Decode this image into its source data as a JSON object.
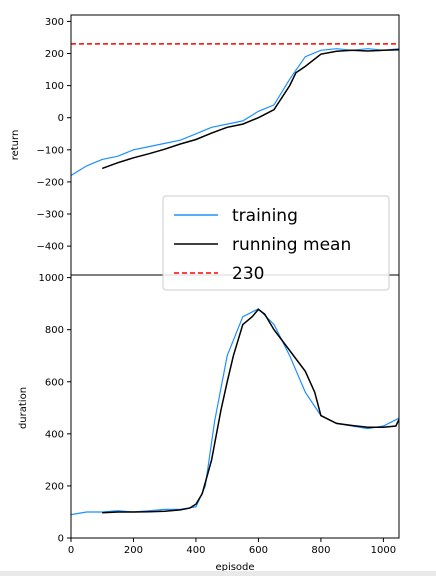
{
  "chart_data": [
    {
      "type": "line",
      "panel": "top",
      "title": "",
      "xlabel": "",
      "ylabel": "return",
      "xlim": [
        0,
        1050
      ],
      "ylim": [
        -490,
        320
      ],
      "yticks": [
        -400,
        -300,
        -200,
        -100,
        0,
        100,
        200,
        300
      ],
      "ytick_labels": [
        "−400",
        "−300",
        "−200",
        "−100",
        "0",
        "100",
        "200",
        "300"
      ],
      "grid": false,
      "legend": {
        "placement": "lower-right",
        "entries": [
          {
            "label": "training",
            "color": "#1e90ff",
            "style": "solid"
          },
          {
            "label": "running mean",
            "color": "#000000",
            "style": "solid"
          },
          {
            "label": "230",
            "color": "#ff0000",
            "style": "dashed"
          }
        ]
      },
      "series": [
        {
          "name": "training",
          "color": "#1e90ff",
          "x": [
            0,
            50,
            100,
            150,
            200,
            250,
            300,
            350,
            400,
            450,
            500,
            550,
            600,
            650,
            700,
            750,
            800,
            850,
            900,
            950,
            1000,
            1050
          ],
          "y": [
            -180,
            -150,
            -130,
            -120,
            -100,
            -90,
            -80,
            -70,
            -50,
            -30,
            -20,
            -10,
            20,
            40,
            120,
            190,
            210,
            215,
            210,
            215,
            210,
            215
          ]
        },
        {
          "name": "running mean",
          "color": "#000000",
          "x": [
            100,
            150,
            200,
            250,
            300,
            350,
            400,
            450,
            500,
            550,
            600,
            650,
            700,
            720,
            750,
            800,
            850,
            900,
            950,
            1000,
            1050
          ],
          "y": [
            -158,
            -140,
            -125,
            -112,
            -98,
            -82,
            -68,
            -48,
            -30,
            -20,
            0,
            25,
            100,
            140,
            160,
            198,
            207,
            210,
            208,
            210,
            212
          ]
        },
        {
          "name": "230",
          "color": "#ff0000",
          "x": [
            0,
            1050
          ],
          "y": [
            230,
            230
          ]
        }
      ]
    },
    {
      "type": "line",
      "panel": "bottom",
      "title": "",
      "xlabel": "episode",
      "ylabel": "duration",
      "xlim": [
        0,
        1050
      ],
      "ylim": [
        0,
        1010
      ],
      "xticks": [
        0,
        200,
        400,
        600,
        800,
        1000
      ],
      "yticks": [
        0,
        200,
        400,
        600,
        800,
        1000
      ],
      "grid": false,
      "series": [
        {
          "name": "training",
          "color": "#1e90ff",
          "x": [
            0,
            50,
            100,
            150,
            200,
            250,
            300,
            350,
            400,
            430,
            460,
            500,
            550,
            600,
            650,
            700,
            750,
            800,
            850,
            900,
            950,
            1000,
            1050
          ],
          "y": [
            90,
            100,
            100,
            105,
            100,
            105,
            110,
            110,
            120,
            200,
            450,
            700,
            850,
            880,
            820,
            700,
            560,
            470,
            440,
            430,
            420,
            430,
            460
          ]
        },
        {
          "name": "running mean",
          "color": "#000000",
          "x": [
            100,
            150,
            200,
            250,
            300,
            350,
            380,
            400,
            420,
            450,
            480,
            500,
            520,
            550,
            580,
            600,
            620,
            650,
            700,
            750,
            780,
            800,
            850,
            900,
            950,
            1000,
            1040,
            1050
          ],
          "y": [
            97,
            100,
            100,
            101,
            103,
            108,
            115,
            130,
            170,
            300,
            490,
            600,
            700,
            820,
            850,
            878,
            860,
            800,
            720,
            640,
            560,
            470,
            440,
            432,
            425,
            425,
            430,
            455
          ]
        }
      ]
    }
  ]
}
